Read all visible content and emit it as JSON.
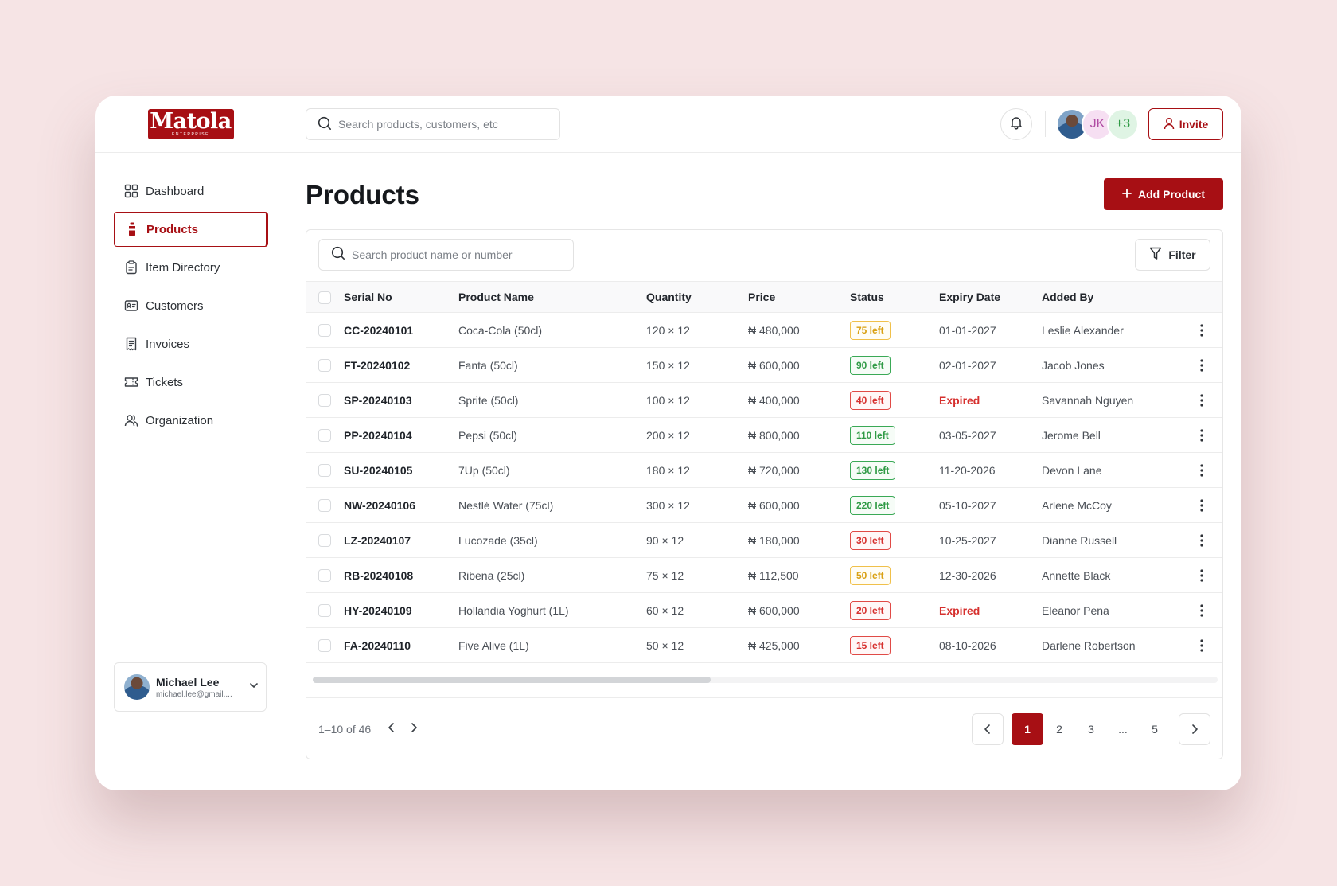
{
  "brand": {
    "logo_text": "Matola",
    "logo_subtext": "ENTERPRISE",
    "accent": "#a70f14"
  },
  "sidebar": {
    "items": [
      {
        "label": "Dashboard",
        "icon": "grid-icon"
      },
      {
        "label": "Products",
        "icon": "bottle-icon",
        "active": true
      },
      {
        "label": "Item Directory",
        "icon": "clipboard-icon"
      },
      {
        "label": "Customers",
        "icon": "id-card-icon"
      },
      {
        "label": "Invoices",
        "icon": "receipt-icon"
      },
      {
        "label": "Tickets",
        "icon": "ticket-icon"
      },
      {
        "label": "Organization",
        "icon": "users-icon"
      }
    ],
    "user": {
      "name": "Michael Lee",
      "email": "michael.lee@gmail...."
    }
  },
  "topbar": {
    "search_placeholder": "Search products, customers, etc",
    "avatars": {
      "initials": "JK",
      "more": "+3"
    },
    "invite_label": "Invite"
  },
  "main": {
    "title": "Products",
    "add_label": "Add Product",
    "table_search_placeholder": "Search product name or number",
    "filter_label": "Filter",
    "columns": [
      "Serial No",
      "Product Name",
      "Quantity",
      "Price",
      "Status",
      "Expiry Date",
      "Added By"
    ],
    "rows": [
      {
        "serial": "CC-20240101",
        "name": "Coca-Cola (50cl)",
        "qty": "120 × 12",
        "price": "₦ 480,000",
        "status": "75 left",
        "status_color": "yellow",
        "expiry": "01-01-2027",
        "added_by": "Leslie Alexander"
      },
      {
        "serial": "FT-20240102",
        "name": "Fanta (50cl)",
        "qty": "150 × 12",
        "price": "₦ 600,000",
        "status": "90 left",
        "status_color": "green",
        "expiry": "02-01-2027",
        "added_by": "Jacob Jones"
      },
      {
        "serial": "SP-20240103",
        "name": "Sprite (50cl)",
        "qty": "100 × 12",
        "price": "₦ 400,000",
        "status": "40 left",
        "status_color": "red",
        "expiry": "Expired",
        "expired": true,
        "added_by": "Savannah Nguyen"
      },
      {
        "serial": "PP-20240104",
        "name": "Pepsi (50cl)",
        "qty": "200 × 12",
        "price": "₦ 800,000",
        "status": "110 left",
        "status_color": "green",
        "expiry": "03-05-2027",
        "added_by": "Jerome Bell"
      },
      {
        "serial": "SU-20240105",
        "name": "7Up (50cl)",
        "qty": "180 × 12",
        "price": "₦ 720,000",
        "status": "130 left",
        "status_color": "green",
        "expiry": "11-20-2026",
        "added_by": "Devon Lane"
      },
      {
        "serial": "NW-20240106",
        "name": "Nestlé Water (75cl)",
        "qty": "300 × 12",
        "price": "₦ 600,000",
        "status": "220 left",
        "status_color": "green",
        "expiry": "05-10-2027",
        "added_by": "Arlene McCoy"
      },
      {
        "serial": "LZ-20240107",
        "name": "Lucozade (35cl)",
        "qty": "90 × 12",
        "price": "₦ 180,000",
        "status": "30 left",
        "status_color": "red",
        "expiry": "10-25-2027",
        "added_by": "Dianne Russell"
      },
      {
        "serial": "RB-20240108",
        "name": "Ribena (25cl)",
        "qty": "75 × 12",
        "price": "₦ 112,500",
        "status": "50 left",
        "status_color": "yellow",
        "expiry": "12-30-2026",
        "added_by": "Annette Black"
      },
      {
        "serial": "HY-20240109",
        "name": "Hollandia Yoghurt (1L)",
        "qty": "60 × 12",
        "price": "₦ 600,000",
        "status": "20 left",
        "status_color": "red",
        "expiry": "Expired",
        "expired": true,
        "added_by": "Eleanor Pena"
      },
      {
        "serial": "FA-20240110",
        "name": "Five Alive (1L)",
        "qty": "50 × 12",
        "price": "₦ 425,000",
        "status": "15 left",
        "status_color": "red",
        "expiry": "08-10-2026",
        "added_by": "Darlene Robertson"
      }
    ],
    "pagination": {
      "range": "1–10 of 46",
      "pages": [
        "1",
        "2",
        "3",
        "...",
        "5"
      ],
      "current": "1"
    }
  }
}
